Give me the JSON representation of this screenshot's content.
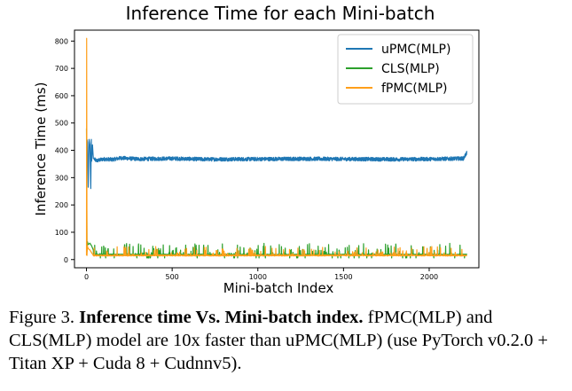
{
  "chart_data": {
    "type": "line",
    "title": "Inference Time for each Mini-batch",
    "xlabel": "Mini-batch Index",
    "ylabel": "Inference Time (ms)",
    "xlim": [
      -70,
      2290
    ],
    "ylim": [
      -30,
      840
    ],
    "xticks": [
      0,
      500,
      1000,
      1500,
      2000
    ],
    "yticks": [
      0,
      100,
      200,
      300,
      400,
      500,
      600,
      700,
      800
    ],
    "grid": false,
    "legend_position": "top-right",
    "num_batches": 2220,
    "series": [
      {
        "name": "uPMC(MLP)",
        "color": "#1f77b4",
        "x": [
          0,
          3,
          6,
          10,
          15,
          20,
          25,
          28,
          30,
          35,
          40,
          45,
          50,
          60,
          80,
          100,
          150,
          200,
          300,
          500,
          700,
          1000,
          1300,
          1500,
          1800,
          2000,
          2200,
          2220
        ],
        "values": [
          410,
          440,
          430,
          265,
          440,
          420,
          260,
          440,
          360,
          420,
          370,
          368,
          365,
          362,
          365,
          368,
          366,
          372,
          368,
          370,
          367,
          368,
          369,
          368,
          367,
          368,
          370,
          392
        ],
        "noise_amplitude": 14
      },
      {
        "name": "CLS(MLP)",
        "color": "#2ca02c",
        "baseline": 18,
        "x": [
          0,
          3,
          6,
          10,
          20,
          30,
          50
        ],
        "values": [
          480,
          30,
          65,
          55,
          60,
          50,
          20
        ],
        "noise_amplitude": 10,
        "spike_max": 60
      },
      {
        "name": "fPMC(MLP)",
        "color": "#ff9f1a",
        "baseline": 15,
        "x": [
          0,
          1,
          3,
          5,
          10,
          20,
          40
        ],
        "values": [
          15,
          810,
          15,
          50,
          40,
          35,
          15
        ],
        "noise_amplitude": 8,
        "spike_max": 48
      }
    ]
  },
  "caption": {
    "prefix": "Figure 3. ",
    "bold": "Inference time Vs. Mini-batch index.",
    "rest": " fPMC(MLP) and CLS(MLP) model are 10x faster than uPMC(MLP) (use PyTorch v0.2.0 + Titan XP + Cuda 8 + Cudnnv5)."
  }
}
